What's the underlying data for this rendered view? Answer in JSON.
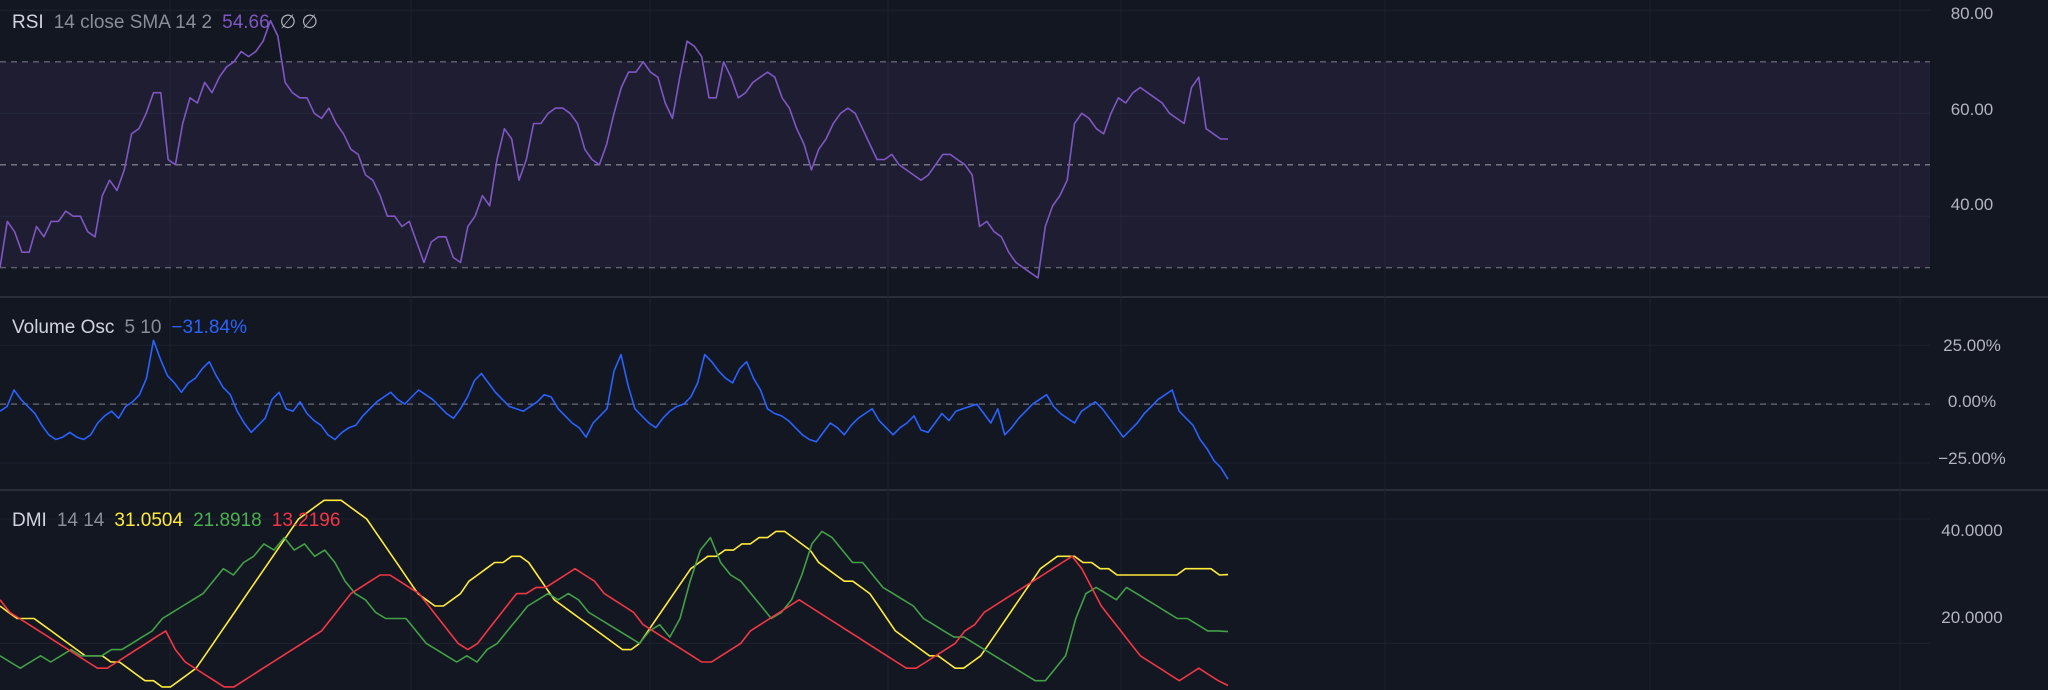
{
  "colors": {
    "background": "#131722",
    "grid": "#1e222d",
    "separator": "#2a2e39",
    "rsi_line": "#7e57c2",
    "rsi_band": "#7e57c2",
    "volume_osc_line": "#2962ff",
    "adx_line": "#ffeb3b",
    "plus_di_line": "#43a047",
    "minus_di_line": "#f23645",
    "level_line": "#787b86"
  },
  "legends": {
    "rsi": {
      "name": "RSI",
      "params": "14 close SMA 14 2",
      "value": "54.66",
      "extra": "∅ ∅"
    },
    "volume_osc": {
      "name": "Volume Osc",
      "params": "5 10",
      "value": "−31.84%"
    },
    "dmi": {
      "name": "DMI",
      "params": "14 14",
      "adx": "31.0504",
      "plus_di": "21.8918",
      "minus_di": "13.2196"
    }
  },
  "axes": {
    "rsi": [
      "80.00",
      "60.00",
      "40.00"
    ],
    "volume_osc": [
      "25.00%",
      "0.00%",
      "−25.00%"
    ],
    "dmi": [
      "40.0000",
      "20.0000"
    ]
  },
  "chart_data": [
    {
      "type": "line",
      "panel": "RSI",
      "ylim": [
        24.5,
        82
      ],
      "levels": [
        70,
        50,
        30
      ],
      "band": [
        30,
        70
      ],
      "yticks": [
        80,
        60,
        40
      ],
      "series": [
        {
          "name": "RSI",
          "values": [
            30,
            39,
            37,
            33,
            33,
            38,
            36,
            39,
            39,
            41,
            40,
            40,
            37,
            36,
            44,
            47,
            45,
            49,
            56,
            57,
            60,
            64,
            64,
            51,
            50,
            58,
            63,
            62,
            66,
            64,
            67,
            69,
            70,
            72,
            71,
            72,
            74,
            78,
            75,
            66,
            64,
            63,
            63,
            60,
            59,
            61,
            58,
            56,
            53,
            52,
            48,
            47,
            44,
            40,
            40,
            38,
            39,
            35,
            31,
            35,
            36,
            36,
            32,
            31,
            38,
            40,
            44,
            42,
            51,
            57,
            55,
            47,
            51,
            58,
            58,
            60,
            61,
            61,
            60,
            58,
            53,
            51,
            50,
            54,
            60,
            65,
            68,
            68,
            70,
            68,
            67,
            62,
            59,
            67,
            74,
            73,
            71,
            63,
            63,
            70,
            67,
            63,
            64,
            66,
            67,
            68,
            67,
            63,
            61,
            57,
            54,
            49,
            53,
            55,
            58,
            60,
            61,
            60,
            57,
            54,
            51,
            51,
            52,
            50,
            49,
            48,
            47,
            48,
            50,
            52,
            52,
            51,
            50,
            48,
            38,
            39,
            37,
            36,
            33,
            31,
            30,
            29,
            28,
            38,
            42,
            44,
            47,
            58,
            60,
            59,
            57,
            56,
            60,
            63,
            62,
            64,
            65,
            64,
            63,
            62,
            60,
            59,
            58,
            65,
            67,
            57,
            56,
            55,
            55
          ]
        }
      ]
    },
    {
      "type": "line",
      "panel": "Volume Osc",
      "ylim": [
        -36,
        45
      ],
      "levels": [
        0
      ],
      "yticks": [
        25,
        0,
        -25
      ],
      "series": [
        {
          "name": "Volume Osc",
          "values": [
            -3,
            -1,
            6,
            2,
            -1,
            -4,
            -9,
            -13,
            -15,
            -14,
            -12,
            -14,
            -15,
            -13,
            -8,
            -5,
            -3,
            -6,
            -1,
            1,
            4,
            11,
            27,
            19,
            12,
            9,
            5,
            9,
            11,
            15,
            18,
            12,
            7,
            4,
            -3,
            -8,
            -12,
            -9,
            -6,
            2,
            5,
            -2,
            -3,
            1,
            -4,
            -7,
            -9,
            -13,
            -15,
            -12,
            -10,
            -9,
            -5,
            -2,
            1,
            3,
            5,
            2,
            0,
            3,
            6,
            4,
            2,
            -1,
            -4,
            -6,
            -2,
            3,
            10,
            13,
            9,
            5,
            2,
            -1,
            -2,
            -3,
            -1,
            1,
            4,
            3,
            -2,
            -5,
            -8,
            -10,
            -14,
            -8,
            -5,
            -2,
            14,
            21,
            8,
            -2,
            -5,
            -8,
            -10,
            -6,
            -3,
            -1,
            0,
            3,
            9,
            21,
            18,
            14,
            11,
            9,
            15,
            18,
            11,
            6,
            -2,
            -4,
            -5,
            -7,
            -10,
            -13,
            -15,
            -16,
            -12,
            -8,
            -10,
            -13,
            -9,
            -6,
            -4,
            -2,
            -7,
            -10,
            -13,
            -10,
            -8,
            -5,
            -11,
            -12,
            -8,
            -4,
            -7,
            -3,
            -2,
            -1,
            0,
            -4,
            -8,
            -2,
            -13,
            -10,
            -6,
            -3,
            0,
            2,
            4,
            -1,
            -4,
            -6,
            -8,
            -3,
            -1,
            1,
            -2,
            -6,
            -10,
            -14,
            -11,
            -8,
            -4,
            -1,
            2,
            4,
            6,
            -3,
            -6,
            -9,
            -15,
            -19,
            -24,
            -27,
            -31.84
          ]
        }
      ]
    },
    {
      "type": "line",
      "panel": "DMI",
      "ylim": [
        12.5,
        44.5
      ],
      "yticks": [
        40,
        20
      ],
      "series": [
        {
          "name": "ADX",
          "values": [
            26,
            25,
            24,
            24,
            24,
            23,
            22,
            21,
            20,
            19,
            18,
            18,
            18,
            17,
            17,
            16,
            15,
            14,
            14,
            13,
            13,
            14,
            15,
            16,
            18,
            20,
            22,
            24,
            26,
            28,
            30,
            32,
            34,
            36,
            38,
            40,
            41,
            42,
            43,
            43,
            43,
            42,
            41,
            40,
            38,
            36,
            34,
            32,
            30,
            28,
            27,
            26,
            26,
            27,
            28,
            30,
            31,
            32,
            33,
            33,
            34,
            34,
            33,
            31,
            29,
            27,
            26,
            25,
            24,
            23,
            22,
            21,
            20,
            19,
            19,
            20,
            22,
            24,
            26,
            28,
            30,
            32,
            33,
            34,
            34,
            35,
            35,
            36,
            36,
            37,
            37,
            38,
            38,
            37,
            36,
            35,
            33,
            32,
            31,
            30,
            30,
            29,
            28,
            26,
            24,
            22,
            21,
            20,
            19,
            18,
            18,
            17,
            16,
            16,
            17,
            18,
            20,
            22,
            24,
            26,
            28,
            30,
            32,
            33,
            34,
            34,
            34,
            33,
            33,
            32,
            32,
            31,
            31,
            31,
            31,
            31,
            31,
            31,
            31,
            32,
            32,
            32,
            32,
            31,
            31.05
          ]
        },
        {
          "name": "+DI",
          "values": [
            18,
            17,
            16,
            17,
            18,
            17,
            18,
            19,
            18,
            18,
            18,
            19,
            19,
            20,
            21,
            22,
            24,
            25,
            26,
            27,
            28,
            30,
            32,
            31,
            33,
            34,
            36,
            35,
            37,
            35,
            36,
            34,
            35,
            33,
            30,
            28,
            27,
            25,
            24,
            24,
            24,
            22,
            20,
            19,
            18,
            17,
            18,
            17,
            19,
            20,
            22,
            24,
            26,
            27,
            28,
            27,
            28,
            27,
            25,
            24,
            23,
            22,
            21,
            20,
            22,
            23,
            21,
            24,
            30,
            35,
            37,
            33,
            31,
            30,
            28,
            26,
            24,
            25,
            27,
            31,
            36,
            38,
            37,
            35,
            33,
            33,
            31,
            29,
            28,
            27,
            26,
            24,
            23,
            22,
            21,
            21,
            20,
            19,
            18,
            17,
            16,
            15,
            14,
            14,
            16,
            18,
            24,
            28,
            29,
            28,
            27,
            29,
            28,
            27,
            26,
            25,
            24,
            24,
            23,
            22,
            22,
            21.8918
          ]
        },
        {
          "name": "-DI",
          "values": [
            27,
            25,
            24,
            23,
            22,
            21,
            20,
            19,
            18,
            17,
            16,
            16,
            17,
            18,
            19,
            20,
            21,
            22,
            19,
            17,
            16,
            15,
            14,
            13,
            13,
            14,
            15,
            16,
            17,
            18,
            19,
            20,
            21,
            22,
            24,
            26,
            28,
            29,
            30,
            31,
            31,
            30,
            29,
            28,
            26,
            24,
            22,
            20,
            19,
            20,
            22,
            24,
            26,
            28,
            28,
            29,
            29,
            30,
            31,
            32,
            31,
            30,
            28,
            27,
            26,
            25,
            23,
            22,
            21,
            20,
            19,
            18,
            17,
            17,
            18,
            19,
            20,
            22,
            23,
            24,
            25,
            26,
            27,
            26,
            25,
            24,
            23,
            22,
            21,
            20,
            19,
            18,
            17,
            16,
            16,
            17,
            18,
            19,
            20,
            22,
            23,
            25,
            26,
            27,
            28,
            29,
            30,
            31,
            32,
            33,
            34,
            32,
            29,
            26,
            24,
            22,
            20,
            18,
            17,
            16,
            15,
            14,
            15,
            16,
            15,
            14,
            13.2196
          ]
        }
      ]
    }
  ]
}
